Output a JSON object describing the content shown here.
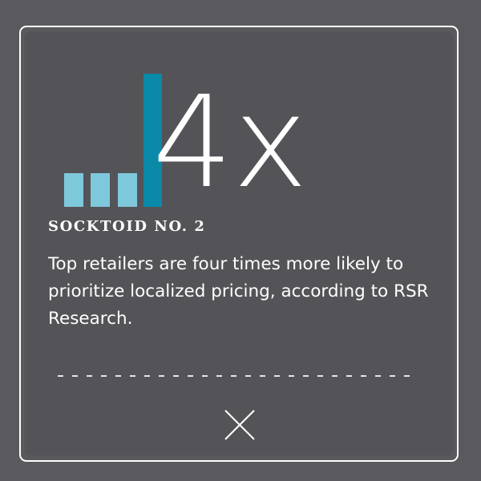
{
  "stat": {
    "value": "4x",
    "bar_colors": [
      "#7ec8dc",
      "#0a8aa8"
    ]
  },
  "card": {
    "heading": "SOCKTOID NO. 2",
    "body": "Top retailers are four times more likely to prioritize localized pricing, according to RSR Research."
  },
  "close": {
    "icon": "close-icon"
  },
  "colors": {
    "background": "#5a595e",
    "card": "#545458",
    "text": "#ffffff"
  }
}
